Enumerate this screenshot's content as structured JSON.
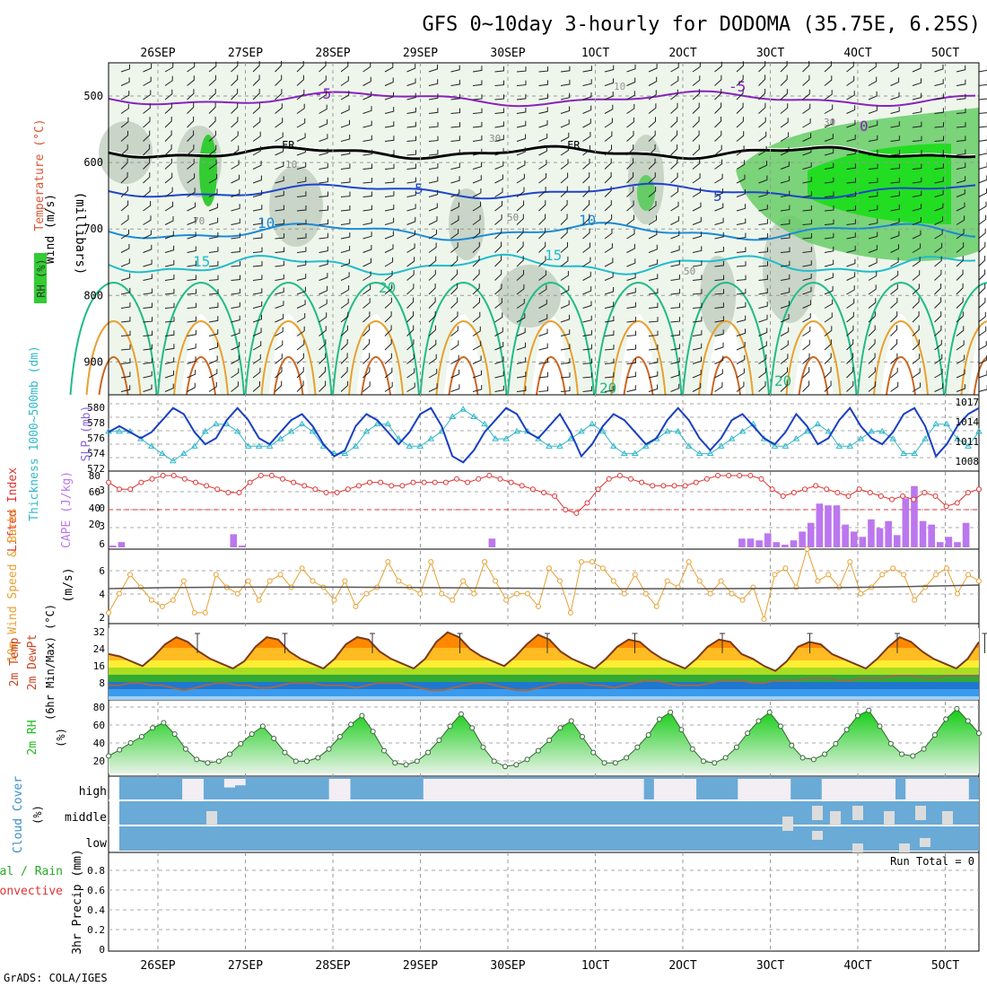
{
  "title": "GFS 0~10day 3-hourly for DODOMA (35.75E, 6.25S)",
  "credit": "GrADS: COLA/IGES",
  "run_total": "Run Total = 0",
  "date_labels": [
    "26SEP",
    "27SEP",
    "28SEP",
    "29SEP",
    "30SEP",
    "1OCT",
    "2OCT",
    "3OCT",
    "4OCT",
    "5OCT"
  ],
  "colors": {
    "rh_green": "#33cc33",
    "temp_blue": "#2040c0",
    "slp_blue": "#1a3fc0",
    "thick_cyan": "#30b8c8",
    "cape_purple": "#bb77ee",
    "lifted_red": "#dd3333",
    "wind_orange": "#e8a030",
    "rh2m_green": "#22bb22",
    "cloud_blue": "#6aaad6"
  },
  "panels": {
    "upper": {
      "ylabel": "(millibars)",
      "labels": [
        "Wind (m/s)",
        "Temperature (°C)",
        "RH (%)"
      ],
      "yticks": [
        500,
        600,
        700,
        800,
        900
      ],
      "isotherm_labels": [
        "-5",
        "-5",
        "0",
        "FR",
        "FR",
        "5",
        "5",
        "10",
        "10",
        "15",
        "15",
        "20",
        "20",
        "20",
        "10",
        "30",
        "30",
        "50",
        "50",
        "70",
        "10"
      ]
    },
    "slp": {
      "labels": [
        "Thickness 1000~500mb (dm)",
        "SLP (mb)"
      ],
      "left_ticks": [
        "580",
        "578",
        "576",
        "574",
        "572"
      ],
      "right_ticks": [
        "1017",
        "1014",
        "1011",
        "1008"
      ]
    },
    "cape": {
      "labels": [
        "Lifted Index",
        "CAPE (J/kg)"
      ],
      "left_ticks": [
        "-3",
        "0",
        "3",
        "6"
      ],
      "right_ticks": [
        "80",
        "60",
        "40",
        "20"
      ]
    },
    "wind10": {
      "labels": [
        "10m Wind Speed & Barbs",
        "(m/s)"
      ],
      "yticks": [
        "6",
        "4",
        "2"
      ]
    },
    "temp2m": {
      "labels": [
        "2m Temp",
        "2m DewPt",
        "(6hr Min/Max) (°C)"
      ],
      "yticks": [
        "32",
        "24",
        "16",
        "8"
      ]
    },
    "rh2m": {
      "labels": [
        "2m RH",
        "(%)"
      ],
      "yticks": [
        "80",
        "60",
        "40",
        "20"
      ]
    },
    "cloud": {
      "labels": [
        "Cloud Cover",
        "(%)"
      ],
      "levels": [
        "high",
        "middle",
        "low"
      ]
    },
    "precip": {
      "labels": [
        "Total / Rain",
        "Convective",
        "3hr Precip (mm)"
      ],
      "yticks": [
        "0.8",
        "0.6",
        "0.4",
        "0.2",
        "0"
      ]
    }
  },
  "chart_data": [
    {
      "type": "line",
      "name": "slp",
      "ylabel": "SLP (mb)",
      "ylim": [
        1007,
        1018
      ],
      "values": [
        1013,
        1014,
        1013,
        1012,
        1013,
        1015,
        1017,
        1016,
        1013,
        1011,
        1012,
        1015,
        1017,
        1015,
        1012,
        1011,
        1013,
        1015,
        1016,
        1014,
        1011,
        1009,
        1010,
        1014,
        1016,
        1015,
        1013,
        1011,
        1013,
        1016,
        1017,
        1014,
        1009,
        1008,
        1010,
        1013,
        1015,
        1017,
        1016,
        1013,
        1012,
        1014,
        1016,
        1013,
        1009,
        1011,
        1014,
        1016,
        1015,
        1013,
        1011,
        1012,
        1015,
        1017,
        1015,
        1012,
        1010,
        1012,
        1015,
        1016,
        1014,
        1012,
        1011,
        1013,
        1016,
        1014,
        1011,
        1012,
        1015,
        1017,
        1014,
        1012,
        1011,
        1013,
        1016,
        1017,
        1014,
        1009,
        1011,
        1014,
        1016,
        1017
      ]
    },
    {
      "type": "line",
      "name": "thickness",
      "ylabel": "Thickness 1000~500mb (dm)",
      "ylim": [
        572,
        581
      ],
      "values": [
        577,
        577,
        577,
        576,
        575,
        574,
        573,
        574,
        575,
        577,
        578,
        578,
        577,
        575,
        575,
        575,
        576,
        577,
        578,
        577,
        575,
        574,
        574,
        575,
        577,
        578,
        578,
        576,
        575,
        575,
        576,
        577,
        579,
        580,
        579,
        578,
        576,
        576,
        577,
        577,
        576,
        575,
        575,
        576,
        577,
        578,
        577,
        575,
        574,
        574,
        575,
        576,
        577,
        577,
        575,
        574,
        574,
        575,
        576,
        577,
        578,
        576,
        575,
        575,
        576,
        577,
        578,
        577,
        575,
        575,
        576,
        577,
        577,
        576,
        574,
        574,
        576,
        578,
        578,
        576,
        575,
        577
      ]
    },
    {
      "type": "bar",
      "name": "cape",
      "ylabel": "CAPE (J/kg)",
      "ylim": [
        0,
        80
      ],
      "values": [
        2,
        6,
        0,
        0,
        0,
        0,
        0,
        0,
        0,
        0,
        0,
        0,
        0,
        0,
        15,
        2,
        0,
        0,
        0,
        0,
        0,
        0,
        0,
        0,
        0,
        0,
        0,
        0,
        0,
        0,
        0,
        0,
        0,
        0,
        0,
        0,
        0,
        0,
        0,
        0,
        0,
        0,
        0,
        0,
        10,
        0,
        0,
        0,
        0,
        0,
        0,
        0,
        0,
        0,
        0,
        0,
        0,
        0,
        0,
        0,
        0,
        0,
        0,
        0,
        0,
        0,
        0,
        0,
        0,
        0,
        0,
        0,
        0,
        10,
        10,
        8,
        16,
        6,
        3,
        8,
        18,
        28,
        50,
        48,
        48,
        26,
        18,
        12,
        32,
        22,
        30,
        14,
        56,
        70,
        30,
        26,
        6,
        12,
        6,
        28,
        0
      ]
    },
    {
      "type": "line",
      "name": "lifted_index",
      "ylabel": "Lifted Index",
      "ylim": [
        -4.5,
        6
      ],
      "values": [
        5,
        4,
        4,
        5,
        5.5,
        6,
        6,
        5.5,
        5,
        4.5,
        4,
        3.5,
        3.5,
        5,
        6,
        6,
        5.5,
        5,
        4.5,
        4,
        3.5,
        3.5,
        4,
        4.5,
        5,
        5,
        4.5,
        4.5,
        5,
        5,
        5,
        5,
        5.5,
        5,
        5.5,
        6,
        5.5,
        5,
        4.5,
        4,
        3.5,
        3,
        1,
        0.5,
        2,
        4,
        5.5,
        6,
        5.5,
        5,
        4.5,
        4.5,
        4.5,
        4.5,
        5,
        5.5,
        6,
        6,
        6,
        6,
        5.5,
        4,
        3,
        3.5,
        4,
        4.5,
        4,
        3.5,
        3,
        4,
        3.5,
        3,
        2.5,
        3,
        2.5,
        3.5,
        3,
        1.5,
        2,
        3.5,
        4
      ]
    },
    {
      "type": "line",
      "name": "wind10_speed",
      "ylabel": "(m/s)",
      "ylim": [
        2,
        7.5
      ],
      "values": [
        2.5,
        4,
        5.5,
        4.5,
        3.5,
        3,
        3.5,
        5,
        2.5,
        2.5,
        5.5,
        4.5,
        4,
        5,
        3.5,
        5,
        5.5,
        4.5,
        6,
        5,
        4.5,
        3.5,
        5,
        3,
        4,
        4.5,
        6.5,
        5,
        4.5,
        4,
        6.5,
        4,
        3.5,
        5,
        4,
        6.5,
        5,
        3.5,
        4,
        4,
        3,
        6,
        5,
        2.5,
        6.5,
        6.5,
        6,
        5,
        4,
        5.5,
        4,
        3,
        5,
        4.5,
        6.5,
        5,
        4,
        5,
        4,
        3.5,
        4.5,
        2,
        5.5,
        6,
        4.5,
        7.5,
        5,
        5.5,
        4.5,
        6.5,
        4,
        4.5,
        5.5,
        6,
        5.5,
        3.5,
        4.5,
        5.5,
        6,
        4,
        5.5,
        5
      ]
    },
    {
      "type": "line",
      "name": "temp2m",
      "ylabel": "(°C)",
      "ylim": [
        4,
        33
      ],
      "values": [
        23,
        22,
        20,
        18,
        22,
        27,
        30,
        28,
        24,
        21,
        19,
        17,
        20,
        26,
        30,
        29,
        24,
        21,
        19,
        17,
        21,
        27,
        30,
        29,
        24,
        21,
        19,
        17,
        21,
        28,
        32,
        30,
        25,
        22,
        20,
        18,
        22,
        27,
        31,
        29,
        24,
        21,
        19,
        17,
        21,
        26,
        29,
        28,
        24,
        21,
        19,
        17,
        21,
        26,
        29,
        28,
        23,
        21,
        18,
        16,
        20,
        26,
        28,
        27,
        23,
        21,
        19,
        17,
        21,
        26,
        30,
        28,
        24,
        21,
        19,
        17,
        21,
        28
      ]
    },
    {
      "type": "line",
      "name": "dewpt2m",
      "ylabel": "(°C)",
      "ylim": [
        4,
        33
      ],
      "values": [
        10,
        10,
        11,
        11,
        10,
        10,
        9,
        8,
        9,
        10,
        11,
        11,
        10,
        10,
        9,
        9,
        10,
        11,
        11,
        11,
        10,
        10,
        10,
        9,
        10,
        11,
        11,
        11,
        10,
        9,
        8,
        8,
        9,
        10,
        11,
        11,
        10,
        9,
        8,
        8,
        9,
        10,
        11,
        11,
        11,
        10,
        10,
        9,
        10,
        11,
        12,
        12,
        11,
        10,
        10,
        10,
        11,
        12,
        12,
        12,
        11,
        11,
        12,
        12,
        12,
        13,
        13,
        13,
        12,
        12,
        13,
        13,
        13,
        14,
        14,
        14,
        13,
        13,
        14,
        14,
        14,
        14
      ]
    },
    {
      "type": "area",
      "name": "rh2m",
      "ylabel": "(%)",
      "ylim": [
        10,
        90
      ],
      "values": [
        30,
        37,
        45,
        52,
        62,
        68,
        55,
        38,
        26,
        22,
        24,
        32,
        44,
        55,
        64,
        50,
        34,
        24,
        24,
        28,
        38,
        52,
        66,
        76,
        58,
        36,
        22,
        20,
        24,
        34,
        48,
        64,
        78,
        62,
        40,
        24,
        18,
        20,
        26,
        36,
        48,
        62,
        70,
        52,
        34,
        22,
        22,
        28,
        40,
        54,
        72,
        80,
        60,
        38,
        24,
        22,
        28,
        40,
        56,
        70,
        80,
        64,
        42,
        28,
        26,
        32,
        44,
        60,
        76,
        82,
        64,
        44,
        32,
        30,
        38,
        54,
        72,
        84,
        70,
        56
      ]
    },
    {
      "type": "bar",
      "name": "cloud_high",
      "ylabel": "Cloud Cover (%)",
      "ylim": [
        0,
        100
      ],
      "values": [
        100,
        100,
        100,
        100,
        100,
        100,
        0,
        0,
        100,
        100,
        60,
        70,
        100,
        100,
        100,
        100,
        100,
        100,
        100,
        100,
        0,
        0,
        100,
        100,
        100,
        100,
        100,
        100,
        100,
        0,
        0,
        0,
        0,
        0,
        0,
        0,
        0,
        0,
        0,
        0,
        0,
        0,
        0,
        0,
        0,
        0,
        0,
        0,
        0,
        0,
        100,
        0,
        0,
        0,
        0,
        100,
        100,
        100,
        100,
        0,
        0,
        0,
        0,
        0,
        100,
        100,
        100,
        0,
        0,
        0,
        0,
        0,
        0,
        0,
        100,
        0,
        0,
        0,
        0,
        0,
        0,
        100
      ]
    }
  ]
}
